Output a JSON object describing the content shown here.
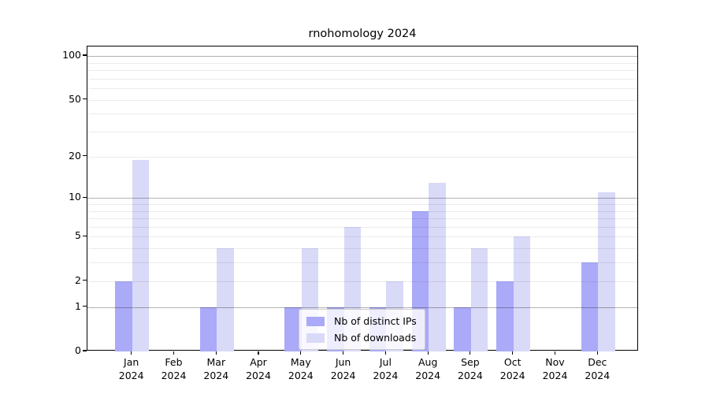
{
  "title": "rnohomology 2024",
  "chart_data": {
    "type": "bar",
    "title": "rnohomology 2024",
    "categories": [
      "Jan",
      "Feb",
      "Mar",
      "Apr",
      "May",
      "Jun",
      "Jul",
      "Aug",
      "Sep",
      "Oct",
      "Nov",
      "Dec"
    ],
    "year": "2024",
    "series": [
      {
        "name": "Nb of distinct IPs",
        "color": "#aaaaf8",
        "values": [
          2,
          0,
          1,
          0,
          1,
          1,
          1,
          8,
          1,
          2,
          0,
          3
        ]
      },
      {
        "name": "Nb of downloads",
        "color": "#d9d9f8",
        "values": [
          19,
          0,
          4,
          0,
          4,
          6,
          2,
          13,
          4,
          5,
          0,
          11
        ]
      }
    ],
    "xlabel": "",
    "ylabel": "",
    "yscale": "log1p",
    "ylim": [
      0,
      116
    ],
    "yticks": [
      0,
      1,
      2,
      5,
      10,
      20,
      50,
      100
    ],
    "major_gridlines": [
      1,
      10,
      100
    ],
    "minor_gridlines": [
      2,
      3,
      4,
      5,
      6,
      7,
      8,
      9,
      20,
      30,
      40,
      50,
      60,
      70,
      80,
      90
    ],
    "grid": "horizontal",
    "legend_position": "lower center"
  }
}
